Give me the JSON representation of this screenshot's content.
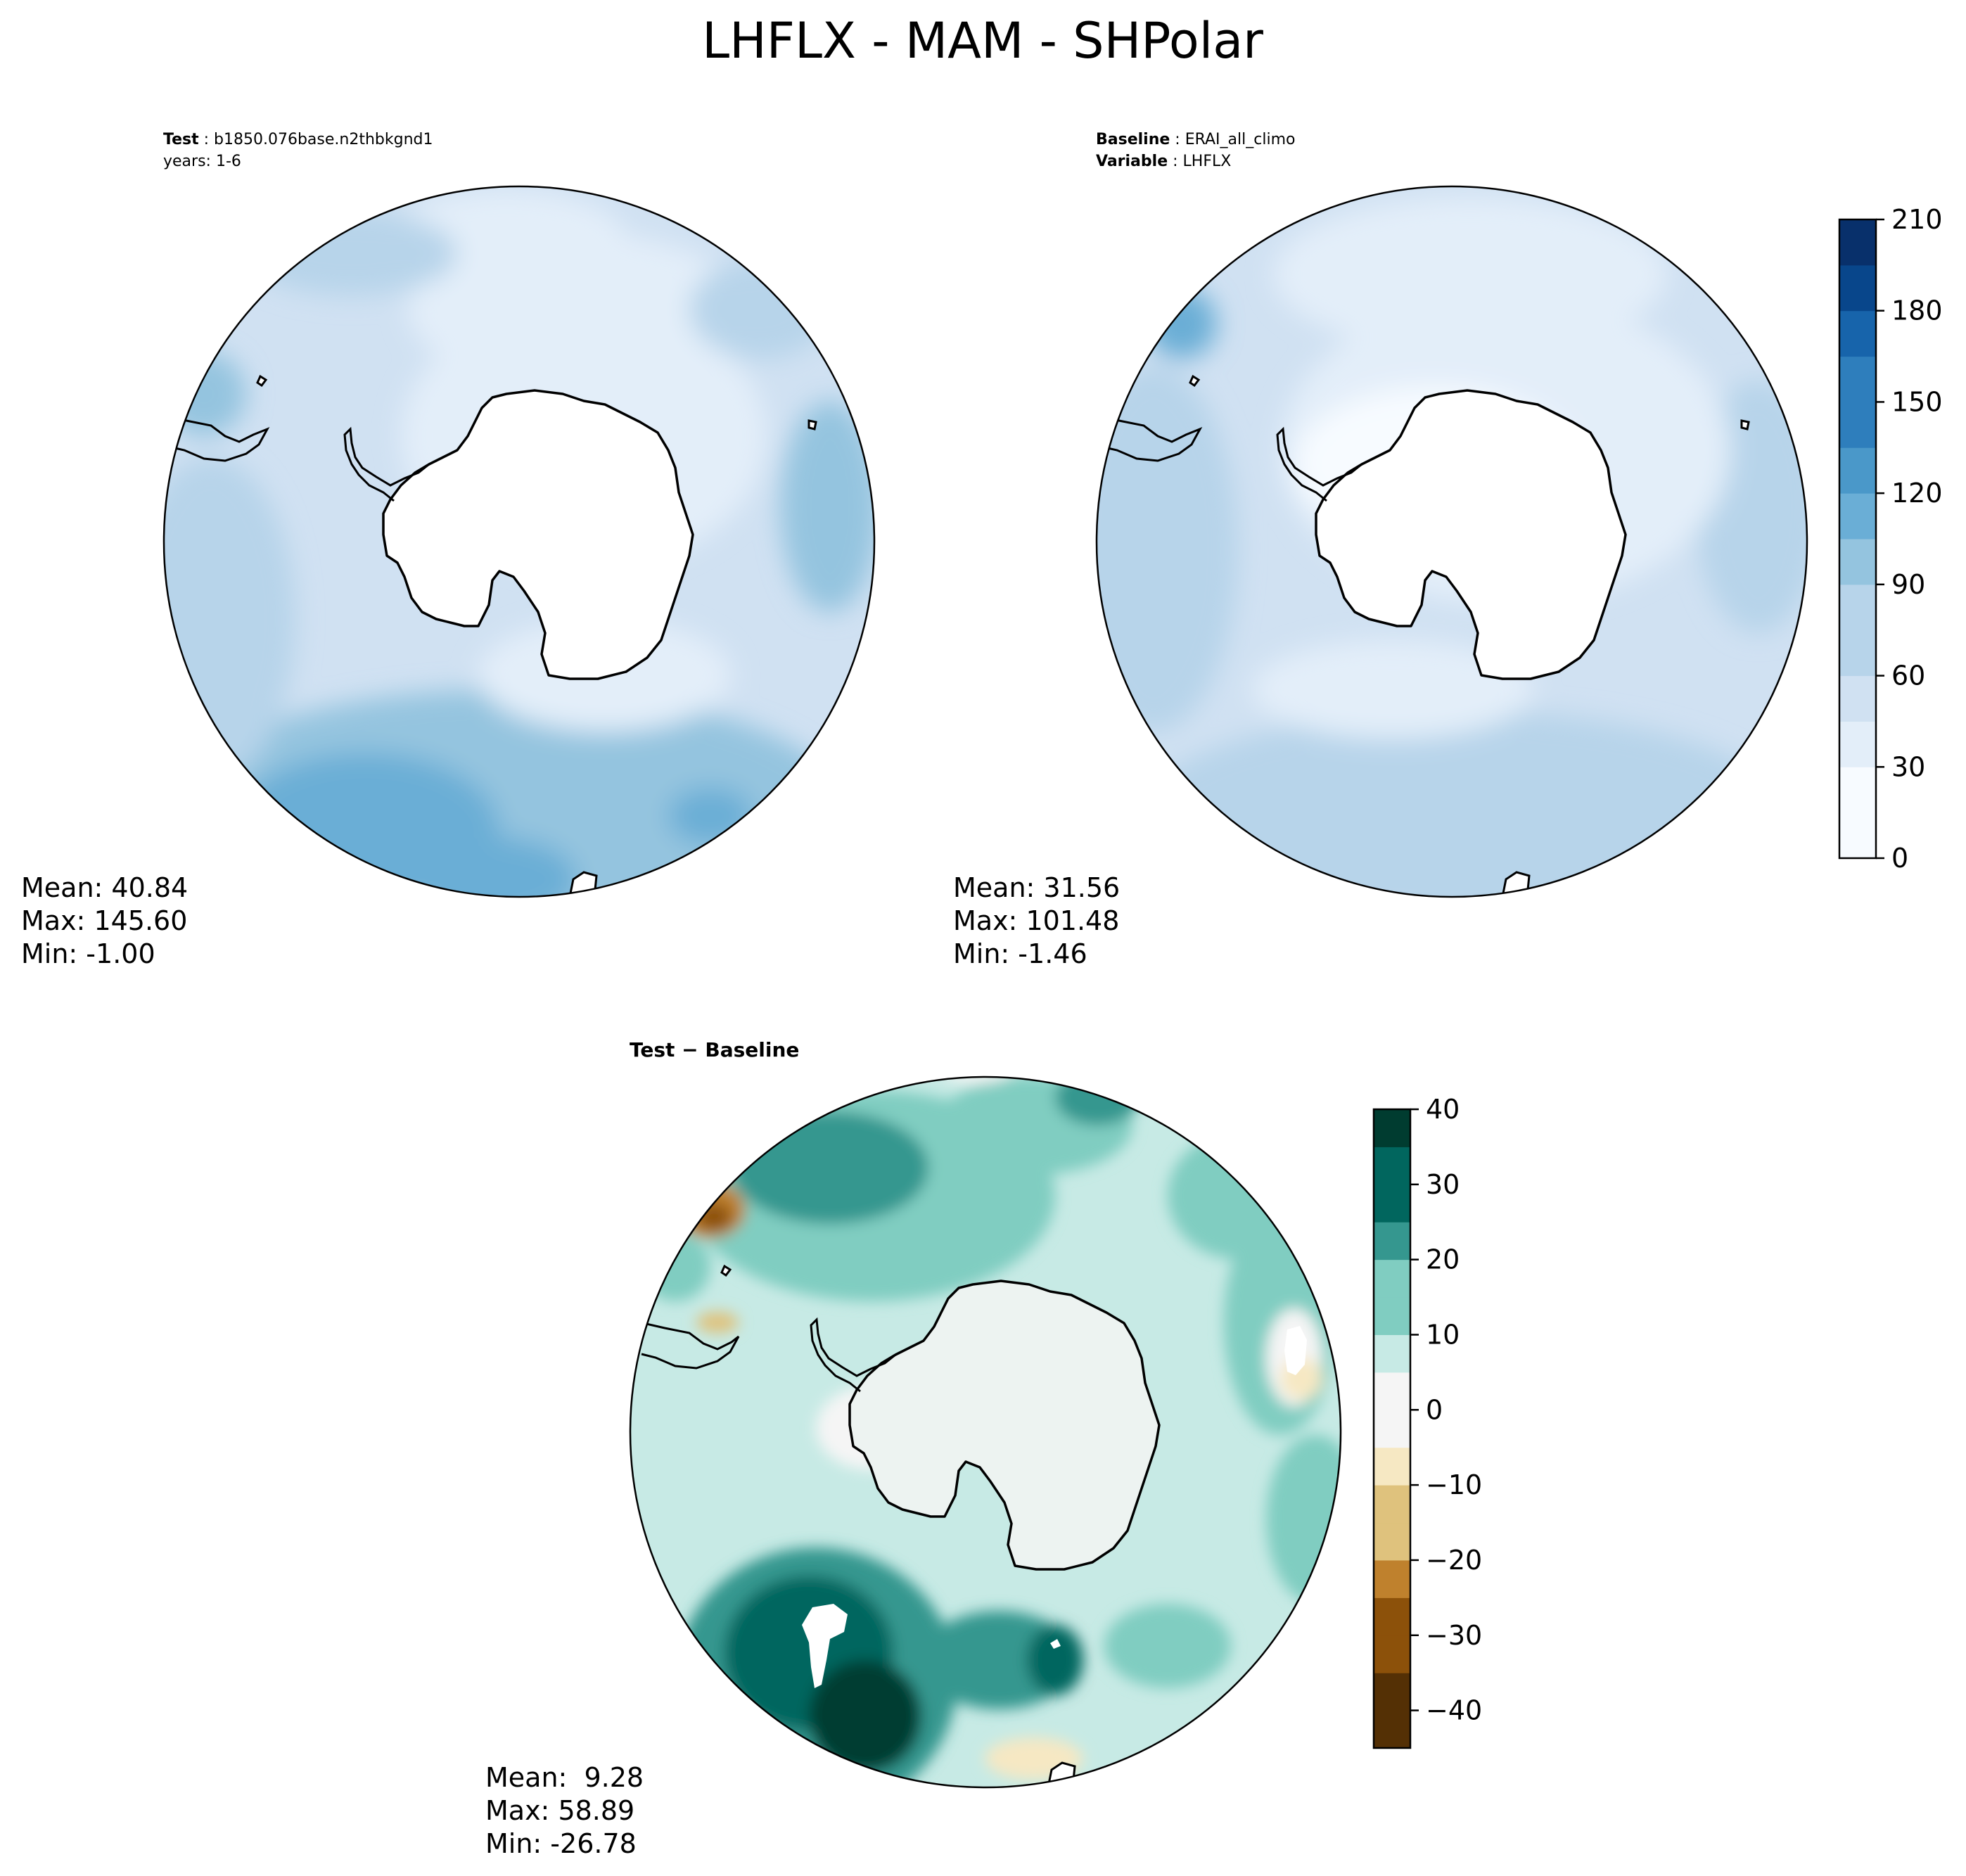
{
  "chart_data": {
    "title": "LHFLX - MAM - SHPolar",
    "colors": {
      "blues": [
        "#f7fbff",
        "#e3eef9",
        "#d0e1f2",
        "#b7d4ea",
        "#94c4df",
        "#6aaed6",
        "#4a98c9",
        "#2e7ebc",
        "#1764ab",
        "#08468b",
        "#08306b"
      ],
      "diff": [
        "#543005",
        "#8c510a",
        "#bf812d",
        "#dfc27d",
        "#f6e8c3",
        "#f5f5f5",
        "#c7eae5",
        "#80cdc1",
        "#35978f",
        "#01665e",
        "#003c30"
      ],
      "land": "#ffffff",
      "coastline": "#000000"
    },
    "panels": [
      {
        "id": "test",
        "type": "heatmap",
        "projection": "south-polar-stereographic",
        "header_lines": [
          {
            "bold": "Test",
            "text": "b1850.076base.n2thbkgnd1"
          },
          {
            "bold": "",
            "text": "years: 1-6"
          }
        ],
        "stats": {
          "mean": "Mean: 40.84",
          "max": "Max: 145.60",
          "min": "Min: -1.00"
        }
      },
      {
        "id": "baseline",
        "type": "heatmap",
        "projection": "south-polar-stereographic",
        "header_lines": [
          {
            "bold": "Baseline",
            "text": "ERAI_all_climo"
          },
          {
            "bold": "Variable",
            "text": "LHFLX"
          }
        ],
        "stats": {
          "mean": "Mean: 31.56",
          "max": "Max: 101.48",
          "min": "Min: -1.46"
        }
      },
      {
        "id": "difference",
        "type": "heatmap",
        "projection": "south-polar-stereographic",
        "header": "Test − Baseline",
        "stats": {
          "mean": "Mean:  9.28",
          "max": "Max: 58.89",
          "min": "Min: -26.78"
        }
      }
    ],
    "colorbars": [
      {
        "id": "main",
        "range": [
          0,
          210
        ],
        "ticks": [
          0,
          30,
          60,
          90,
          120,
          150,
          180,
          210
        ],
        "tick_labels": [
          "0",
          "30",
          "60",
          "90",
          "120",
          "150",
          "180",
          "210"
        ],
        "levels": [
          0,
          15,
          30,
          45,
          60,
          75,
          90,
          105,
          120,
          135,
          150,
          165,
          180,
          195,
          210
        ]
      },
      {
        "id": "diff",
        "range": [
          -45,
          40
        ],
        "ticks": [
          40,
          30,
          20,
          10,
          0,
          -10,
          -20,
          -30,
          -40
        ],
        "tick_labels": [
          "40",
          "30",
          "20",
          "10",
          "0",
          "−10",
          "−20",
          "−30",
          "−40"
        ],
        "levels": [
          -45,
          -40,
          -35,
          -30,
          -25,
          -20,
          -15,
          -10,
          -5,
          0,
          5,
          10,
          15,
          20,
          25,
          30,
          35,
          40
        ]
      }
    ]
  }
}
